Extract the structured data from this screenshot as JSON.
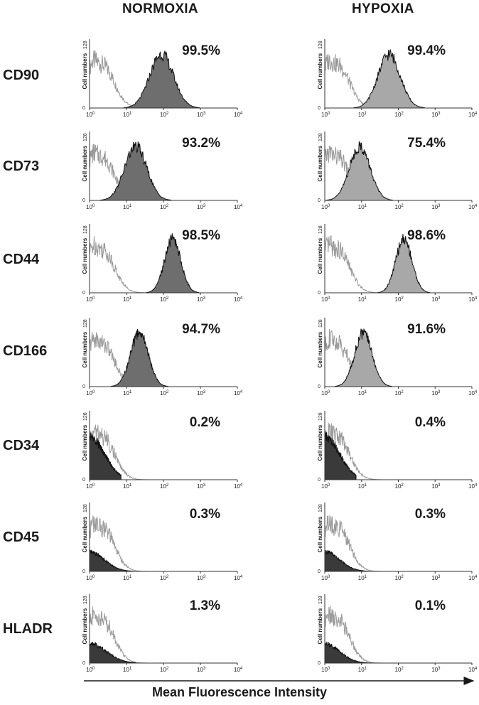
{
  "chart_data": {
    "type": "histogram-grid",
    "columns": [
      "NORMOXIA",
      "HYPOXIA"
    ],
    "xlabel": "Mean Fluorescence Intensity",
    "ylabel": "Cell numbers",
    "ymax_label": "128",
    "ymin_label": "0",
    "x_axis_scale": "log",
    "x_ticks": [
      {
        "base": "10",
        "exp": "0"
      },
      {
        "base": "10",
        "exp": "1"
      },
      {
        "base": "10",
        "exp": "2"
      },
      {
        "base": "10",
        "exp": "3"
      },
      {
        "base": "10",
        "exp": "4"
      }
    ],
    "series_legend": {
      "isotype_control": "open gray outline",
      "marker": "filled histogram"
    },
    "rows": [
      {
        "marker": "CD90",
        "normoxia": {
          "percent": "99.5%",
          "peak_log10": 1.95,
          "width": 0.32,
          "control_peak": 0.35
        },
        "hypoxia": {
          "percent": "99.4%",
          "peak_log10": 1.75,
          "width": 0.3,
          "control_peak": 0.35
        }
      },
      {
        "marker": "CD73",
        "normoxia": {
          "percent": "93.2%",
          "peak_log10": 1.25,
          "width": 0.3,
          "control_peak": 0.35
        },
        "hypoxia": {
          "percent": "75.4%",
          "peak_log10": 0.95,
          "width": 0.28,
          "control_peak": 0.35
        }
      },
      {
        "marker": "CD44",
        "normoxia": {
          "percent": "98.5%",
          "peak_log10": 2.25,
          "width": 0.22,
          "control_peak": 0.35
        },
        "hypoxia": {
          "percent": "98.6%",
          "peak_log10": 2.15,
          "width": 0.22,
          "control_peak": 0.35
        }
      },
      {
        "marker": "CD166",
        "normoxia": {
          "percent": "94.7%",
          "peak_log10": 1.35,
          "width": 0.24,
          "control_peak": 0.35
        },
        "hypoxia": {
          "percent": "91.6%",
          "peak_log10": 1.05,
          "width": 0.24,
          "control_peak": 0.35
        }
      },
      {
        "marker": "CD34",
        "normoxia": {
          "percent": "0.2%",
          "peak_log10": 0.05,
          "width": 0.25,
          "control_peak": 0.35
        },
        "hypoxia": {
          "percent": "0.4%",
          "peak_log10": 0.05,
          "width": 0.25,
          "control_peak": 0.35
        }
      },
      {
        "marker": "CD45",
        "normoxia": {
          "percent": "0.3%",
          "peak_log10": 0.4,
          "width": 0.25,
          "control_peak": 0.35
        },
        "hypoxia": {
          "percent": "0.3%",
          "peak_log10": 0.4,
          "width": 0.25,
          "control_peak": 0.35
        }
      },
      {
        "marker": "HLADR",
        "normoxia": {
          "percent": "1.3%",
          "peak_log10": 0.35,
          "width": 0.28,
          "control_peak": 0.35
        },
        "hypoxia": {
          "percent": "0.1%",
          "peak_log10": 0.45,
          "width": 0.25,
          "control_peak": 0.35
        }
      }
    ]
  },
  "colors": {
    "marker_fill_normoxia": "#6e6e6e",
    "marker_fill_hypoxia": "#a8a8a8",
    "marker_fill_negative": "#3a3a3a",
    "control_line": "#9a9a9a",
    "axis": "#333333"
  }
}
